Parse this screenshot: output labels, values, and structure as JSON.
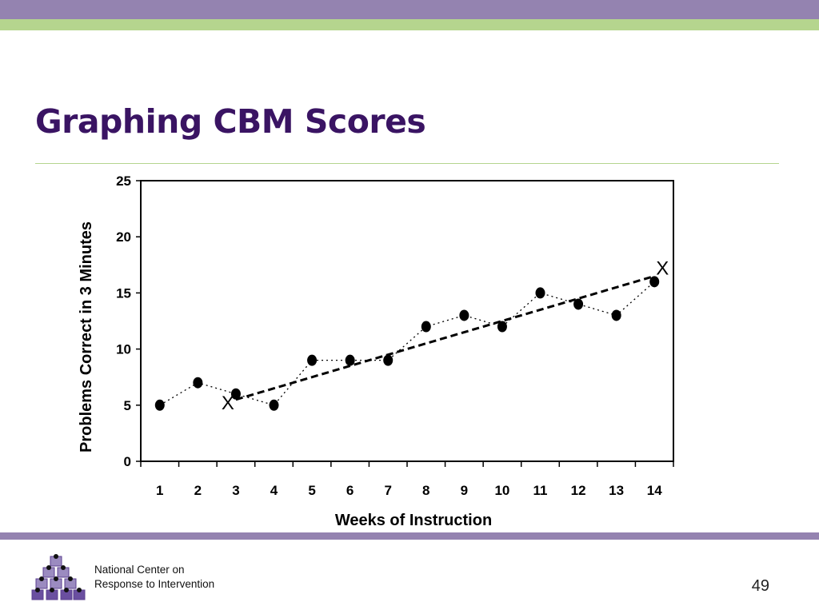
{
  "slide": {
    "title": "Graphing CBM Scores",
    "page_number": "49",
    "org_line1": "National Center on",
    "org_line2": "Response to Intervention",
    "colors": {
      "title": "#3a1463",
      "purple_band": "#9483b0",
      "green_band": "#b5d58e"
    }
  },
  "chart_data": {
    "type": "line",
    "xlabel": "Weeks of Instruction",
    "ylabel": "Problems Correct in 3 Minutes",
    "categories": [
      "1",
      "2",
      "3",
      "4",
      "5",
      "6",
      "7",
      "8",
      "9",
      "10",
      "11",
      "12",
      "13",
      "14"
    ],
    "ylim": [
      0,
      25
    ],
    "yticks": [
      "0",
      "5",
      "10",
      "15",
      "20",
      "25"
    ],
    "series": [
      {
        "values": [
          5,
          7,
          6,
          5,
          9,
          9,
          9,
          12,
          13,
          12,
          15,
          14,
          13,
          16
        ]
      }
    ],
    "trend_line": {
      "start": {
        "x": 3,
        "y": 5.5
      },
      "end": {
        "x": 14,
        "y": 16.5
      }
    },
    "markers": [
      {
        "label": "X",
        "x": 3,
        "y": 5.5
      },
      {
        "label": "X",
        "x": 14,
        "y": 16.5
      }
    ],
    "grid": false
  }
}
